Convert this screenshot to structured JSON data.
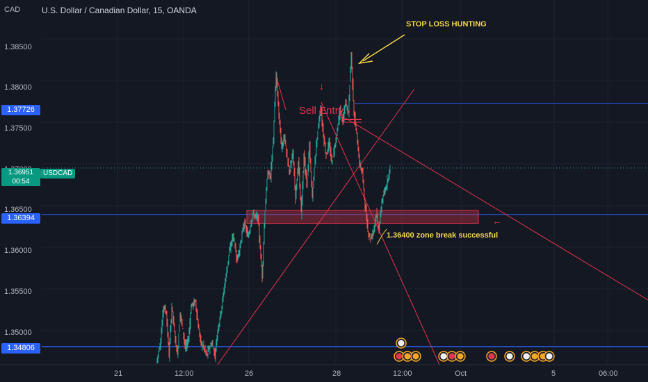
{
  "header": {
    "currency": "CAD",
    "title": "U.S. Dollar / Canadian Dollar, 15, OANDA"
  },
  "price_tags": {
    "current_price": "1.36951",
    "countdown": "00:54",
    "symbol": "USDCAD",
    "levels": [
      "1.37726",
      "1.36394",
      "1.34806"
    ]
  },
  "annotations": {
    "stop_loss": "STOP LOSS HUNTING",
    "sell_entry": "Sell Entry",
    "zone_break": "1.36400 zone break successful"
  },
  "colors": {
    "background": "#141823",
    "bull": "#26a69a",
    "bear": "#ef5350",
    "level_line": "#2962ff",
    "trendline": "#e1364b",
    "annotation": "#f5d547"
  },
  "chart_data": {
    "type": "candlestick",
    "title": "U.S. Dollar / Canadian Dollar, 15, OANDA",
    "y_ticks": [
      "1.38500",
      "1.38000",
      "1.37500",
      "1.37000",
      "1.36500",
      "1.36000",
      "1.35500",
      "1.35000"
    ],
    "x_ticks": [
      "21",
      "12:00",
      "26",
      "28",
      "12:00",
      "Oct",
      "5",
      "06:00"
    ],
    "ylim": [
      1.3455,
      1.389
    ],
    "price_path": [
      [
        0,
        1.3462
      ],
      [
        6,
        1.3488
      ],
      [
        10,
        1.353
      ],
      [
        14,
        1.3522
      ],
      [
        18,
        1.347
      ],
      [
        22,
        1.353
      ],
      [
        26,
        1.3498
      ],
      [
        30,
        1.347
      ],
      [
        34,
        1.3522
      ],
      [
        38,
        1.35
      ],
      [
        42,
        1.3478
      ],
      [
        46,
        1.349
      ],
      [
        50,
        1.353
      ],
      [
        56,
        1.3535
      ],
      [
        60,
        1.3505
      ],
      [
        64,
        1.3485
      ],
      [
        68,
        1.348
      ],
      [
        72,
        1.347
      ],
      [
        76,
        1.348
      ],
      [
        80,
        1.3485
      ],
      [
        84,
        1.347
      ],
      [
        88,
        1.35
      ],
      [
        94,
        1.353
      ],
      [
        98,
        1.3555
      ],
      [
        104,
        1.359
      ],
      [
        110,
        1.3615
      ],
      [
        116,
        1.3585
      ],
      [
        120,
        1.36
      ],
      [
        126,
        1.363
      ],
      [
        132,
        1.3612
      ],
      [
        138,
        1.364
      ],
      [
        146,
        1.3635
      ],
      [
        152,
        1.3565
      ],
      [
        156,
        1.3645
      ],
      [
        160,
        1.369
      ],
      [
        164,
        1.3685
      ],
      [
        168,
        1.373
      ],
      [
        172,
        1.3808
      ],
      [
        176,
        1.376
      ],
      [
        180,
        1.3718
      ],
      [
        184,
        1.3735
      ],
      [
        188,
        1.3705
      ],
      [
        192,
        1.369
      ],
      [
        196,
        1.3715
      ],
      [
        200,
        1.366
      ],
      [
        204,
        1.3705
      ],
      [
        208,
        1.364
      ],
      [
        212,
        1.371
      ],
      [
        216,
        1.3675
      ],
      [
        220,
        1.372
      ],
      [
        224,
        1.366
      ],
      [
        228,
        1.3705
      ],
      [
        232,
        1.374
      ],
      [
        236,
        1.3768
      ],
      [
        240,
        1.3735
      ],
      [
        244,
        1.371
      ],
      [
        248,
        1.3725
      ],
      [
        252,
        1.3702
      ],
      [
        256,
        1.372
      ],
      [
        260,
        1.374
      ],
      [
        264,
        1.3765
      ],
      [
        268,
        1.375
      ],
      [
        272,
        1.3775
      ],
      [
        276,
        1.376
      ],
      [
        280,
        1.3833
      ],
      [
        284,
        1.376
      ],
      [
        288,
        1.3735
      ],
      [
        292,
        1.37
      ],
      [
        296,
        1.369
      ],
      [
        300,
        1.365
      ],
      [
        304,
        1.362
      ],
      [
        308,
        1.361
      ],
      [
        312,
        1.362
      ],
      [
        316,
        1.364
      ],
      [
        320,
        1.362
      ],
      [
        324,
        1.3655
      ],
      [
        328,
        1.3665
      ],
      [
        332,
        1.368
      ],
      [
        336,
        1.3695
      ]
    ],
    "levels": [
      1.37726,
      1.36394,
      1.34806,
      1.36951
    ],
    "zone": [
      1.364,
      1.3632
    ]
  }
}
